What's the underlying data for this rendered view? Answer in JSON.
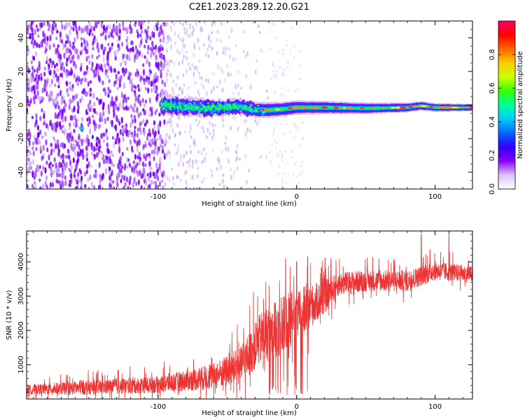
{
  "title": "C2E1.2023.289.12.20.G21",
  "chart_data": [
    {
      "type": "heatmap",
      "xlabel": "Height of straight line (km)",
      "ylabel": "Frequency (Hz)",
      "xlim": [
        -195,
        127
      ],
      "ylim": [
        -50,
        50
      ],
      "x_ticks": [
        -100,
        0,
        100
      ],
      "y_ticks": [
        -40,
        -20,
        0,
        20,
        40
      ],
      "colorbar": {
        "label": "Normalized spectral amplitude",
        "range": [
          0,
          1
        ],
        "ticks": [
          0.0,
          0.2,
          0.4,
          0.6,
          0.8
        ],
        "colors": [
          "#ffffff",
          "#d9c4f5",
          "#8800ff",
          "#3300ff",
          "#0066ff",
          "#00ccff",
          "#00ff99",
          "#33ff00",
          "#ccff00",
          "#ffcc00",
          "#ff6600",
          "#ff0000",
          "#ff0066"
        ]
      },
      "features": {
        "noise_region_x": [
          -195,
          -95
        ],
        "faint_noise_region_x": [
          -95,
          -20
        ],
        "signal_track": [
          {
            "x": -98,
            "f": 0.0
          },
          {
            "x": -80,
            "f": -1.0
          },
          {
            "x": -60,
            "f": -2.0
          },
          {
            "x": -40,
            "f": -1.0
          },
          {
            "x": -30,
            "f": -3.0
          },
          {
            "x": -20,
            "f": -3.0
          },
          {
            "x": -10,
            "f": -2.5
          },
          {
            "x": 0,
            "f": -1.5
          },
          {
            "x": 20,
            "f": -1.5
          },
          {
            "x": 50,
            "f": -2.0
          },
          {
            "x": 80,
            "f": -1.5
          },
          {
            "x": 90,
            "f": -0.5
          },
          {
            "x": 100,
            "f": -1.5
          },
          {
            "x": 127,
            "f": -1.5
          }
        ],
        "spot": {
          "x": -155,
          "f": -14
        }
      }
    },
    {
      "type": "line",
      "xlabel": "Height of straight line (km)",
      "ylabel": "SNR (10 * v/v)",
      "xlim": [
        -195,
        127
      ],
      "ylim": [
        0,
        4900
      ],
      "x_ticks": [
        -100,
        0,
        100
      ],
      "y_ticks": [
        1000,
        2000,
        3000,
        4000
      ],
      "series_color": "#ee3333",
      "trend": [
        {
          "x": -195,
          "base": 250,
          "amp": 200
        },
        {
          "x": -150,
          "base": 300,
          "amp": 300
        },
        {
          "x": -100,
          "base": 380,
          "amp": 350
        },
        {
          "x": -60,
          "base": 600,
          "amp": 550
        },
        {
          "x": -40,
          "base": 900,
          "amp": 800
        },
        {
          "x": -25,
          "base": 1700,
          "amp": 1100
        },
        {
          "x": -10,
          "base": 2000,
          "amp": 1300
        },
        {
          "x": 0,
          "base": 2300,
          "amp": 1200
        },
        {
          "x": 10,
          "base": 2600,
          "amp": 900
        },
        {
          "x": 20,
          "base": 2900,
          "amp": 700
        },
        {
          "x": 30,
          "base": 3300,
          "amp": 500
        },
        {
          "x": 50,
          "base": 3400,
          "amp": 450
        },
        {
          "x": 80,
          "base": 3400,
          "amp": 450
        },
        {
          "x": 100,
          "base": 3700,
          "amp": 400
        },
        {
          "x": 127,
          "base": 3600,
          "amp": 350
        }
      ],
      "peaks": [
        {
          "x": -8,
          "y": 4100
        },
        {
          "x": 0,
          "y": 4000
        },
        {
          "x": 8,
          "y": 4150
        },
        {
          "x": 90,
          "y": 4800
        },
        {
          "x": 110,
          "y": 4900
        }
      ]
    }
  ]
}
